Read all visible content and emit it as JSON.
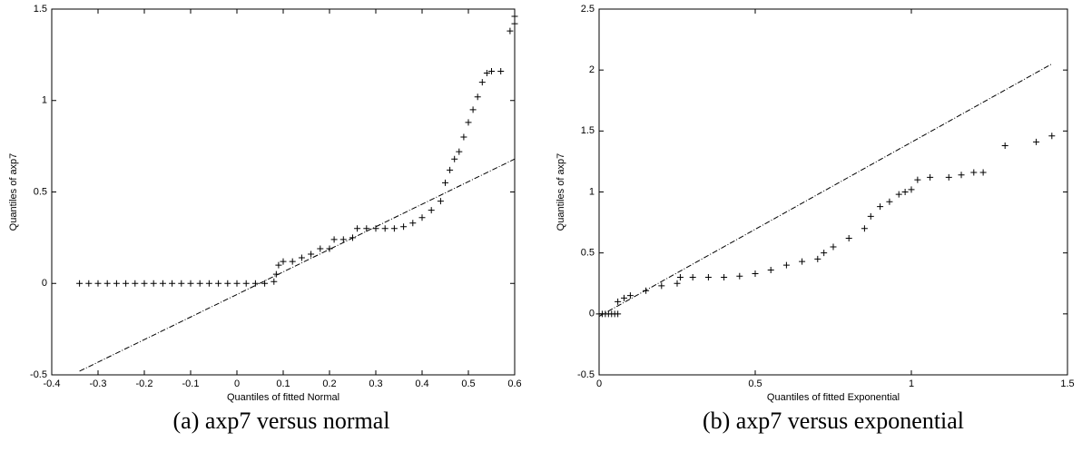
{
  "chart_data": [
    {
      "type": "scatter",
      "xlabel": "Quantiles of fitted Normal",
      "ylabel": "Quantiles of axp7",
      "caption": "(a) axp7 versus normal",
      "xlim": [
        -0.4,
        0.6
      ],
      "ylim": [
        -0.5,
        1.5
      ],
      "xticks": [
        -0.4,
        -0.3,
        -0.2,
        -0.1,
        0,
        0.1,
        0.2,
        0.3,
        0.4,
        0.5,
        0.6
      ],
      "yticks": [
        -0.5,
        0,
        0.5,
        1,
        1.5
      ],
      "x": [
        -0.34,
        -0.32,
        -0.3,
        -0.28,
        -0.26,
        -0.24,
        -0.22,
        -0.2,
        -0.18,
        -0.16,
        -0.14,
        -0.12,
        -0.1,
        -0.08,
        -0.06,
        -0.04,
        -0.02,
        0,
        0.02,
        0.04,
        0.06,
        0.08,
        0.085,
        0.09,
        0.1,
        0.12,
        0.14,
        0.16,
        0.18,
        0.2,
        0.21,
        0.23,
        0.25,
        0.26,
        0.28,
        0.3,
        0.32,
        0.34,
        0.36,
        0.38,
        0.4,
        0.42,
        0.44,
        0.45,
        0.46,
        0.47,
        0.48,
        0.49,
        0.5,
        0.51,
        0.52,
        0.53,
        0.54,
        0.55,
        0.57,
        0.59,
        0.6,
        0.6
      ],
      "values": [
        0,
        0,
        0,
        0,
        0,
        0,
        0,
        0,
        0,
        0,
        0,
        0,
        0,
        0,
        0,
        0,
        0,
        0,
        0,
        0,
        0,
        0.01,
        0.05,
        0.1,
        0.12,
        0.12,
        0.14,
        0.16,
        0.19,
        0.19,
        0.24,
        0.24,
        0.25,
        0.3,
        0.3,
        0.3,
        0.3,
        0.3,
        0.31,
        0.33,
        0.36,
        0.4,
        0.45,
        0.55,
        0.62,
        0.68,
        0.72,
        0.8,
        0.88,
        0.95,
        1.02,
        1.1,
        1.15,
        1.16,
        1.16,
        1.38,
        1.42,
        1.46
      ],
      "reference_line": {
        "x": [
          -0.34,
          0.6
        ],
        "values": [
          -0.48,
          0.68
        ]
      }
    },
    {
      "type": "scatter",
      "xlabel": "Quantiles of fitted Exponential",
      "ylabel": "Quantiles of axp7",
      "caption": "(b) axp7 versus exponential",
      "xlim": [
        0,
        1.5
      ],
      "ylim": [
        -0.5,
        2.5
      ],
      "xticks": [
        0,
        0.5,
        1,
        1.5
      ],
      "yticks": [
        -0.5,
        0,
        0.5,
        1,
        1.5,
        2,
        2.5
      ],
      "x": [
        0,
        0.01,
        0.02,
        0.03,
        0.04,
        0.05,
        0.06,
        0.06,
        0.08,
        0.1,
        0.15,
        0.2,
        0.25,
        0.26,
        0.3,
        0.35,
        0.4,
        0.45,
        0.5,
        0.55,
        0.6,
        0.65,
        0.7,
        0.72,
        0.75,
        0.8,
        0.85,
        0.87,
        0.9,
        0.93,
        0.96,
        0.98,
        1,
        1.02,
        1.06,
        1.12,
        1.16,
        1.2,
        1.23,
        1.3,
        1.4,
        1.45
      ],
      "values": [
        0,
        0,
        0,
        0,
        0,
        0,
        0,
        0.1,
        0.13,
        0.15,
        0.19,
        0.23,
        0.25,
        0.3,
        0.3,
        0.3,
        0.3,
        0.31,
        0.33,
        0.36,
        0.4,
        0.43,
        0.45,
        0.5,
        0.55,
        0.62,
        0.7,
        0.8,
        0.88,
        0.92,
        0.98,
        1,
        1.02,
        1.1,
        1.12,
        1.12,
        1.14,
        1.16,
        1.16,
        1.38,
        1.41,
        1.46
      ],
      "reference_line": {
        "x": [
          0,
          1.45
        ],
        "values": [
          -0.02,
          2.05
        ]
      }
    }
  ]
}
